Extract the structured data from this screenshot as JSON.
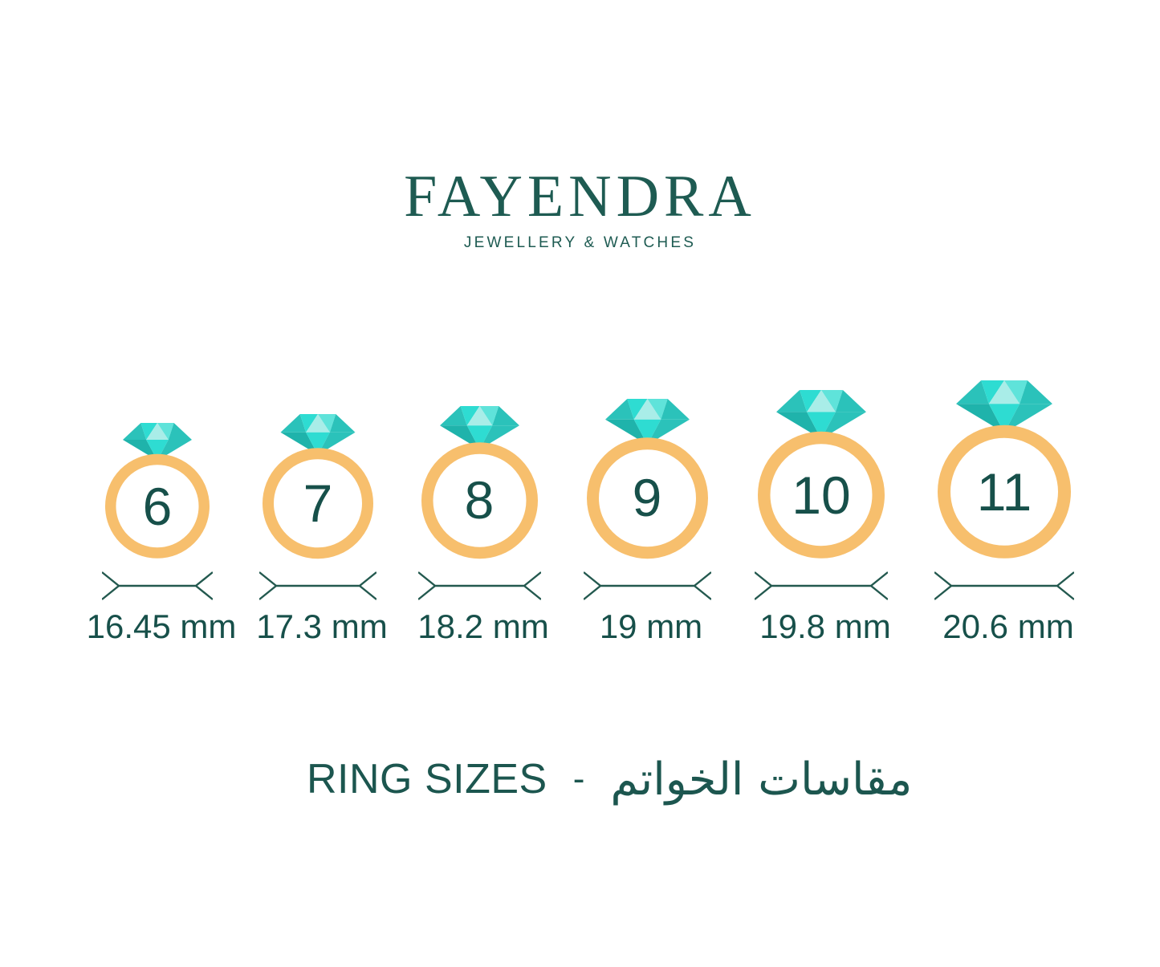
{
  "brand": {
    "name": "FAYENDRA",
    "tagline": "JEWELLERY & WATCHES"
  },
  "title": {
    "en": "RING SIZES",
    "separator": "-",
    "ar": "مقاسات الخواتم"
  },
  "rings": [
    {
      "size": "6",
      "diameter": "16.45 mm"
    },
    {
      "size": "7",
      "diameter": "17.3 mm"
    },
    {
      "size": "8",
      "diameter": "18.2 mm"
    },
    {
      "size": "9",
      "diameter": "19 mm"
    },
    {
      "size": "10",
      "diameter": "19.8 mm"
    },
    {
      "size": "11",
      "diameter": "20.6 mm"
    }
  ],
  "colors": {
    "text_teal": "#17504A",
    "logo_teal": "#1E5B52",
    "arrow_teal": "#23594F",
    "band_gold": "#F7BF6D",
    "gem_bright": "#2EDCD2",
    "gem_light": "#A9EDE8",
    "gem_mid_light": "#5FE3DA",
    "gem_medium": "#2BC2BA",
    "gem_dark": "#1FB3AB"
  },
  "chart_data": {
    "type": "table",
    "title": "RING SIZES - مقاسات الخواتم",
    "columns": [
      "ring_size",
      "inner_diameter"
    ],
    "rows": [
      [
        "6",
        "16.45 mm"
      ],
      [
        "7",
        "17.3 mm"
      ],
      [
        "8",
        "18.2 mm"
      ],
      [
        "9",
        "19 mm"
      ],
      [
        "10",
        "19.8 mm"
      ],
      [
        "11",
        "20.6 mm"
      ]
    ]
  }
}
